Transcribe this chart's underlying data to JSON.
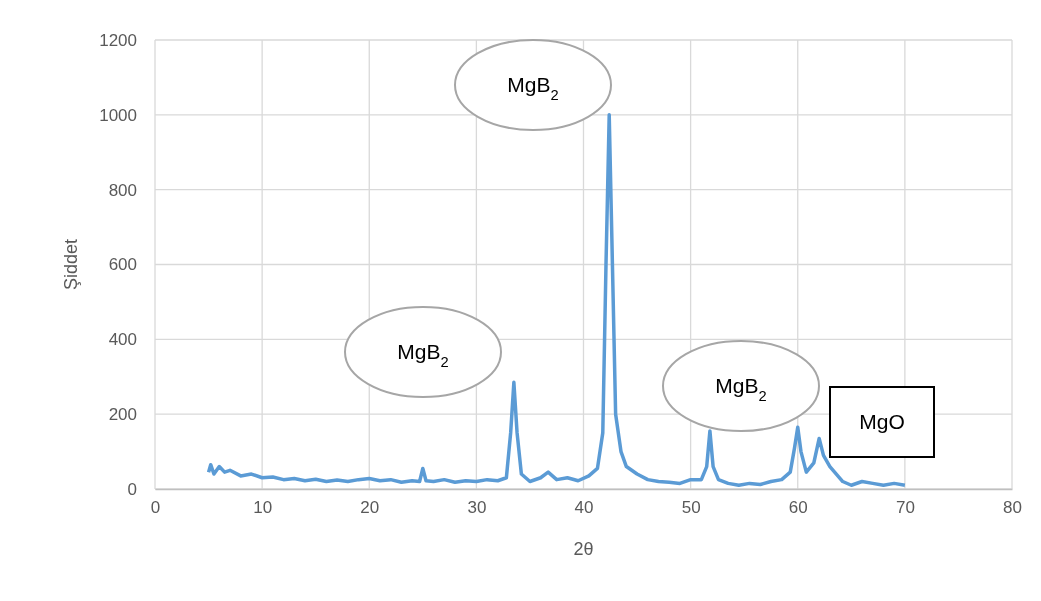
{
  "chart_data": {
    "type": "line",
    "xlabel": "2θ",
    "ylabel": "Şiddet",
    "xlim": [
      0,
      80
    ],
    "xticks": [
      0,
      10,
      20,
      30,
      40,
      50,
      60,
      70,
      80
    ],
    "ylim": [
      0,
      1200
    ],
    "yticks": [
      0,
      200,
      400,
      600,
      800,
      1000,
      1200
    ],
    "grid": true,
    "marker": "none",
    "line_style": "solid",
    "x": [
      5,
      5.2,
      5.5,
      6,
      6.5,
      7,
      8,
      9,
      10,
      11,
      12,
      13,
      14,
      15,
      16,
      17,
      18,
      19,
      20,
      21,
      22,
      23,
      24,
      24.7,
      25,
      25.3,
      26,
      27,
      28,
      29,
      30,
      31,
      32,
      32.8,
      33.2,
      33.5,
      33.8,
      34.2,
      35,
      36,
      36.7,
      37.5,
      38.5,
      39.5,
      40.5,
      41.3,
      41.8,
      42.1,
      42.4,
      42.7,
      43,
      43.5,
      44,
      45,
      46,
      47,
      48,
      49,
      50,
      51,
      51.5,
      51.8,
      52.1,
      52.6,
      53.5,
      54.5,
      55.5,
      56.5,
      57.5,
      58.5,
      59.3,
      59.7,
      60,
      60.3,
      60.8,
      61.5,
      62,
      62.4,
      63,
      63.6,
      64.2,
      65,
      66,
      67,
      68,
      69,
      70
    ],
    "series": [
      {
        "color": "#5b9bd5",
        "values": [
          45,
          65,
          40,
          60,
          45,
          50,
          35,
          40,
          30,
          32,
          25,
          28,
          22,
          26,
          20,
          24,
          20,
          25,
          28,
          22,
          25,
          18,
          22,
          20,
          55,
          22,
          20,
          25,
          18,
          22,
          20,
          25,
          22,
          30,
          150,
          285,
          150,
          40,
          20,
          30,
          45,
          25,
          30,
          22,
          35,
          55,
          150,
          600,
          1000,
          600,
          200,
          100,
          60,
          40,
          25,
          20,
          18,
          15,
          25,
          25,
          60,
          155,
          60,
          25,
          15,
          10,
          15,
          12,
          20,
          25,
          45,
          110,
          165,
          100,
          45,
          70,
          135,
          90,
          60,
          40,
          20,
          10,
          20,
          15,
          10,
          15,
          10
        ]
      }
    ],
    "annotations": [
      "MgB$_{2}$",
      "MgB$_{2}$",
      "MgB$_{2}$",
      "MgO"
    ]
  }
}
